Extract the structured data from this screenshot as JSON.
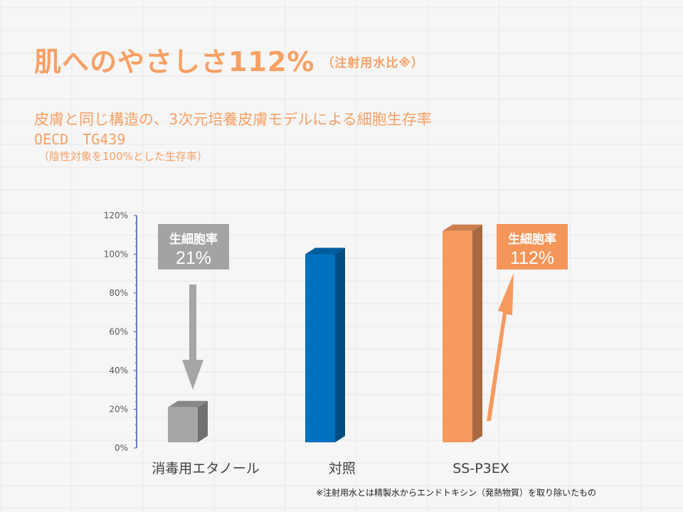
{
  "slide": {
    "title": "肌へのやさしさ112%",
    "title_note": "（注射用水比※）",
    "subtitle": "皮膚と同じ構造の、3次元培養皮膚モデルによる細胞生存率",
    "method": "OECD　TG439",
    "basis": "（陰性対象を100%とした生存率）",
    "footnote": "※注射用水とは精製水からエンドトキシン（発熱物質）を取り除いたもの",
    "accent_color": "#f7a064"
  },
  "callouts": {
    "left": {
      "title": "生細胞率",
      "value": "21%"
    },
    "right": {
      "title": "生細胞率",
      "value": "112%"
    }
  },
  "chart_data": {
    "type": "bar",
    "categories": [
      "消毒用エタノール",
      "対照",
      "SS-P3EX"
    ],
    "values": [
      21,
      100,
      112
    ],
    "colors": [
      "#a6a6a6",
      "#0070c0",
      "#f79a5e"
    ],
    "yticks": [
      "0%",
      "20%",
      "40%",
      "60%",
      "80%",
      "100%",
      "120%"
    ],
    "ylim": [
      0,
      120
    ],
    "grid": false,
    "bar_style": "3d"
  }
}
